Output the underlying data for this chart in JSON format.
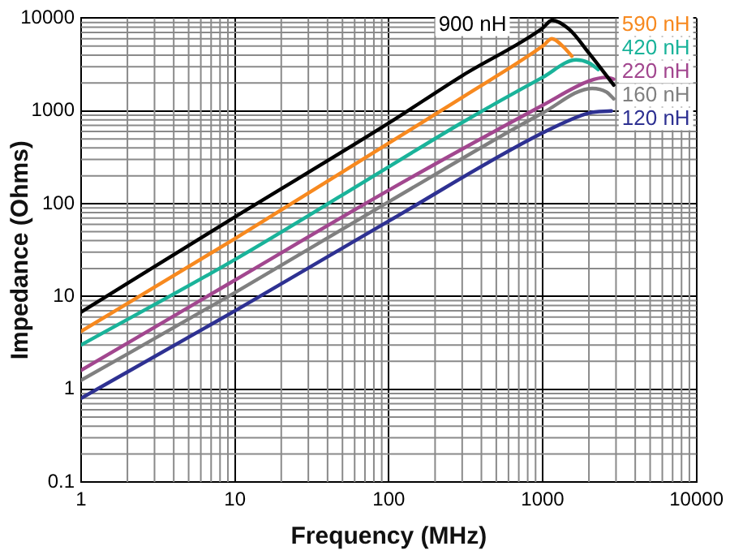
{
  "chart_data": {
    "type": "line",
    "xlabel": "Frequency (MHz)",
    "ylabel": "Impedance (Ohms)",
    "log": "xy",
    "grid": true,
    "legend": false,
    "marker": "none",
    "line_style": "solid",
    "xlim": [
      1,
      10000
    ],
    "xticks": [
      1,
      10,
      100,
      1000,
      10000
    ],
    "ylim": [
      0.1,
      10000
    ],
    "yticks": [
      0.1,
      1,
      10,
      100,
      1000,
      10000
    ],
    "series": [
      {
        "name": "900 nH",
        "color": "#000000",
        "x": [
          1,
          10,
          100,
          300,
          1000,
          1150,
          1500,
          2000,
          2900
        ],
        "values": [
          6.8,
          72,
          740,
          2400,
          7800,
          9500,
          7500,
          4200,
          1900
        ]
      },
      {
        "name": "590 nH",
        "color": "#f7891f",
        "x": [
          1,
          10,
          100,
          300,
          1000,
          1150,
          1350,
          1550
        ],
        "values": [
          4.2,
          42,
          450,
          1400,
          5000,
          6000,
          5000,
          3900
        ]
      },
      {
        "name": "420 nH",
        "color": "#1ab39a",
        "x": [
          1,
          10,
          100,
          300,
          1000,
          1650,
          2000,
          2300
        ],
        "values": [
          3,
          25,
          250,
          750,
          2300,
          3550,
          3300,
          2800
        ]
      },
      {
        "name": "220 nH",
        "color": "#a2478f",
        "x": [
          1,
          10,
          100,
          1000,
          2000,
          2600,
          2900
        ],
        "values": [
          1.6,
          15,
          140,
          1150,
          2100,
          2300,
          2200
        ]
      },
      {
        "name": "160 nH",
        "color": "#808080",
        "x": [
          1,
          10,
          100,
          1000,
          2100,
          2600,
          2900
        ],
        "values": [
          1.25,
          11,
          105,
          950,
          1750,
          1600,
          1350
        ]
      },
      {
        "name": "120 nH",
        "color": "#2e3192",
        "x": [
          1,
          10,
          100,
          1000,
          2000,
          2800
        ],
        "values": [
          0.8,
          7,
          65,
          580,
          950,
          1000
        ]
      }
    ]
  }
}
